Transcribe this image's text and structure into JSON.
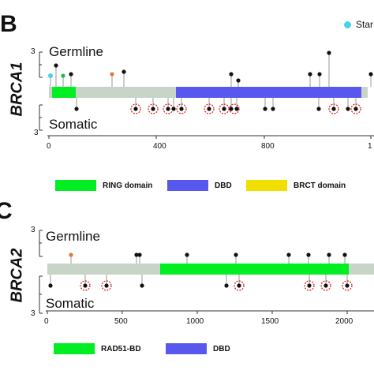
{
  "panel_b": {
    "letter": "B",
    "gene": "BRCA1",
    "germline_label": "Germline",
    "somatic_label": "Somatic",
    "y_top": "3",
    "y_bottom": "3",
    "axis_ticks": [
      "0",
      "400",
      "800",
      "1"
    ],
    "legend": [
      {
        "label": "RING domain",
        "color": "#00ee22"
      },
      {
        "label": "DBD",
        "color": "#5858ee"
      },
      {
        "label": "BRCT domain",
        "color": "#f0e000"
      }
    ],
    "marker_legend": {
      "label": "Star",
      "color": "#44d4e6"
    }
  },
  "panel_c": {
    "letter": "C",
    "gene": "BRCA2",
    "germline_label": "Germline",
    "somatic_label": "Somatic",
    "y_top": "3",
    "y_bottom": "3",
    "axis_ticks": [
      "0",
      "500",
      "1000",
      "1500",
      "2000"
    ],
    "legend": [
      {
        "label": "RAD51-BD",
        "color": "#00ee22"
      },
      {
        "label": "DBD",
        "color": "#5858ee"
      }
    ]
  },
  "colors": {
    "backbone": "#c8d4c8",
    "stem": "#999999",
    "dot": "#111111",
    "start_dot": "#44d4e6",
    "orange_dot": "#e0783c",
    "green_dot": "#22bb44",
    "highlight_ring": "#dd2222"
  }
}
